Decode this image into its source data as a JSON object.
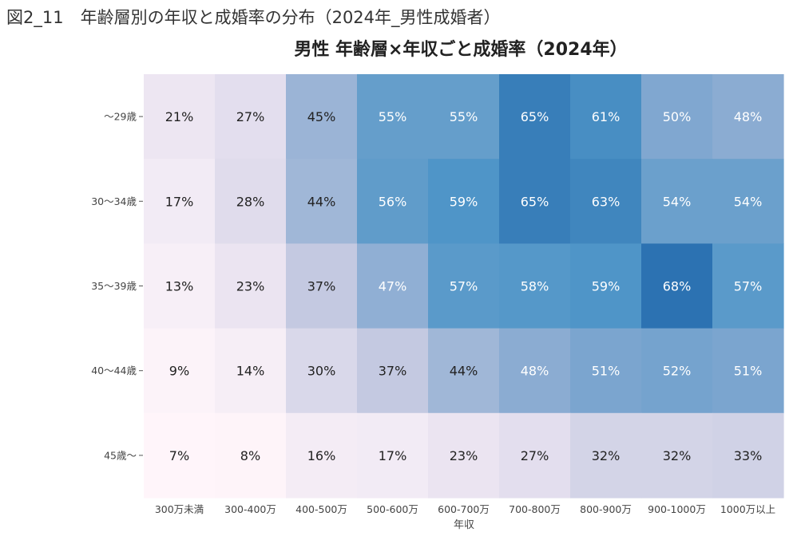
{
  "header": {
    "title": "図2_11　年齢層別の年収と成婚率の分布（2024年_男性成婚者）"
  },
  "colors": {
    "low": "#fff5fa",
    "mid": "#c2c8e0",
    "high": "#2c72b2",
    "text_dark": "#222222",
    "text_light": "#ffffff"
  },
  "chart_data": {
    "type": "heatmap",
    "title": "男性 年齢層×年収ごと成婚率（2024年）",
    "xlabel": "年収",
    "ylabel": "",
    "x_categories": [
      "300万未満",
      "300-400万",
      "400-500万",
      "500-600万",
      "600-700万",
      "700-800万",
      "800-900万",
      "900-1000万",
      "1000万以上"
    ],
    "y_categories": [
      "～29歳",
      "30～34歳",
      "35～39歳",
      "40～44歳",
      "45歳～"
    ],
    "values": [
      [
        21,
        27,
        45,
        55,
        55,
        65,
        61,
        50,
        48
      ],
      [
        17,
        28,
        44,
        56,
        59,
        65,
        63,
        54,
        54
      ],
      [
        13,
        23,
        37,
        47,
        57,
        58,
        59,
        68,
        57
      ],
      [
        9,
        14,
        30,
        37,
        44,
        48,
        51,
        52,
        51
      ],
      [
        7,
        8,
        16,
        17,
        23,
        27,
        32,
        32,
        33
      ]
    ],
    "value_format": "{v}%",
    "colorscale": "PuBu",
    "grid": false,
    "legend": "none"
  }
}
